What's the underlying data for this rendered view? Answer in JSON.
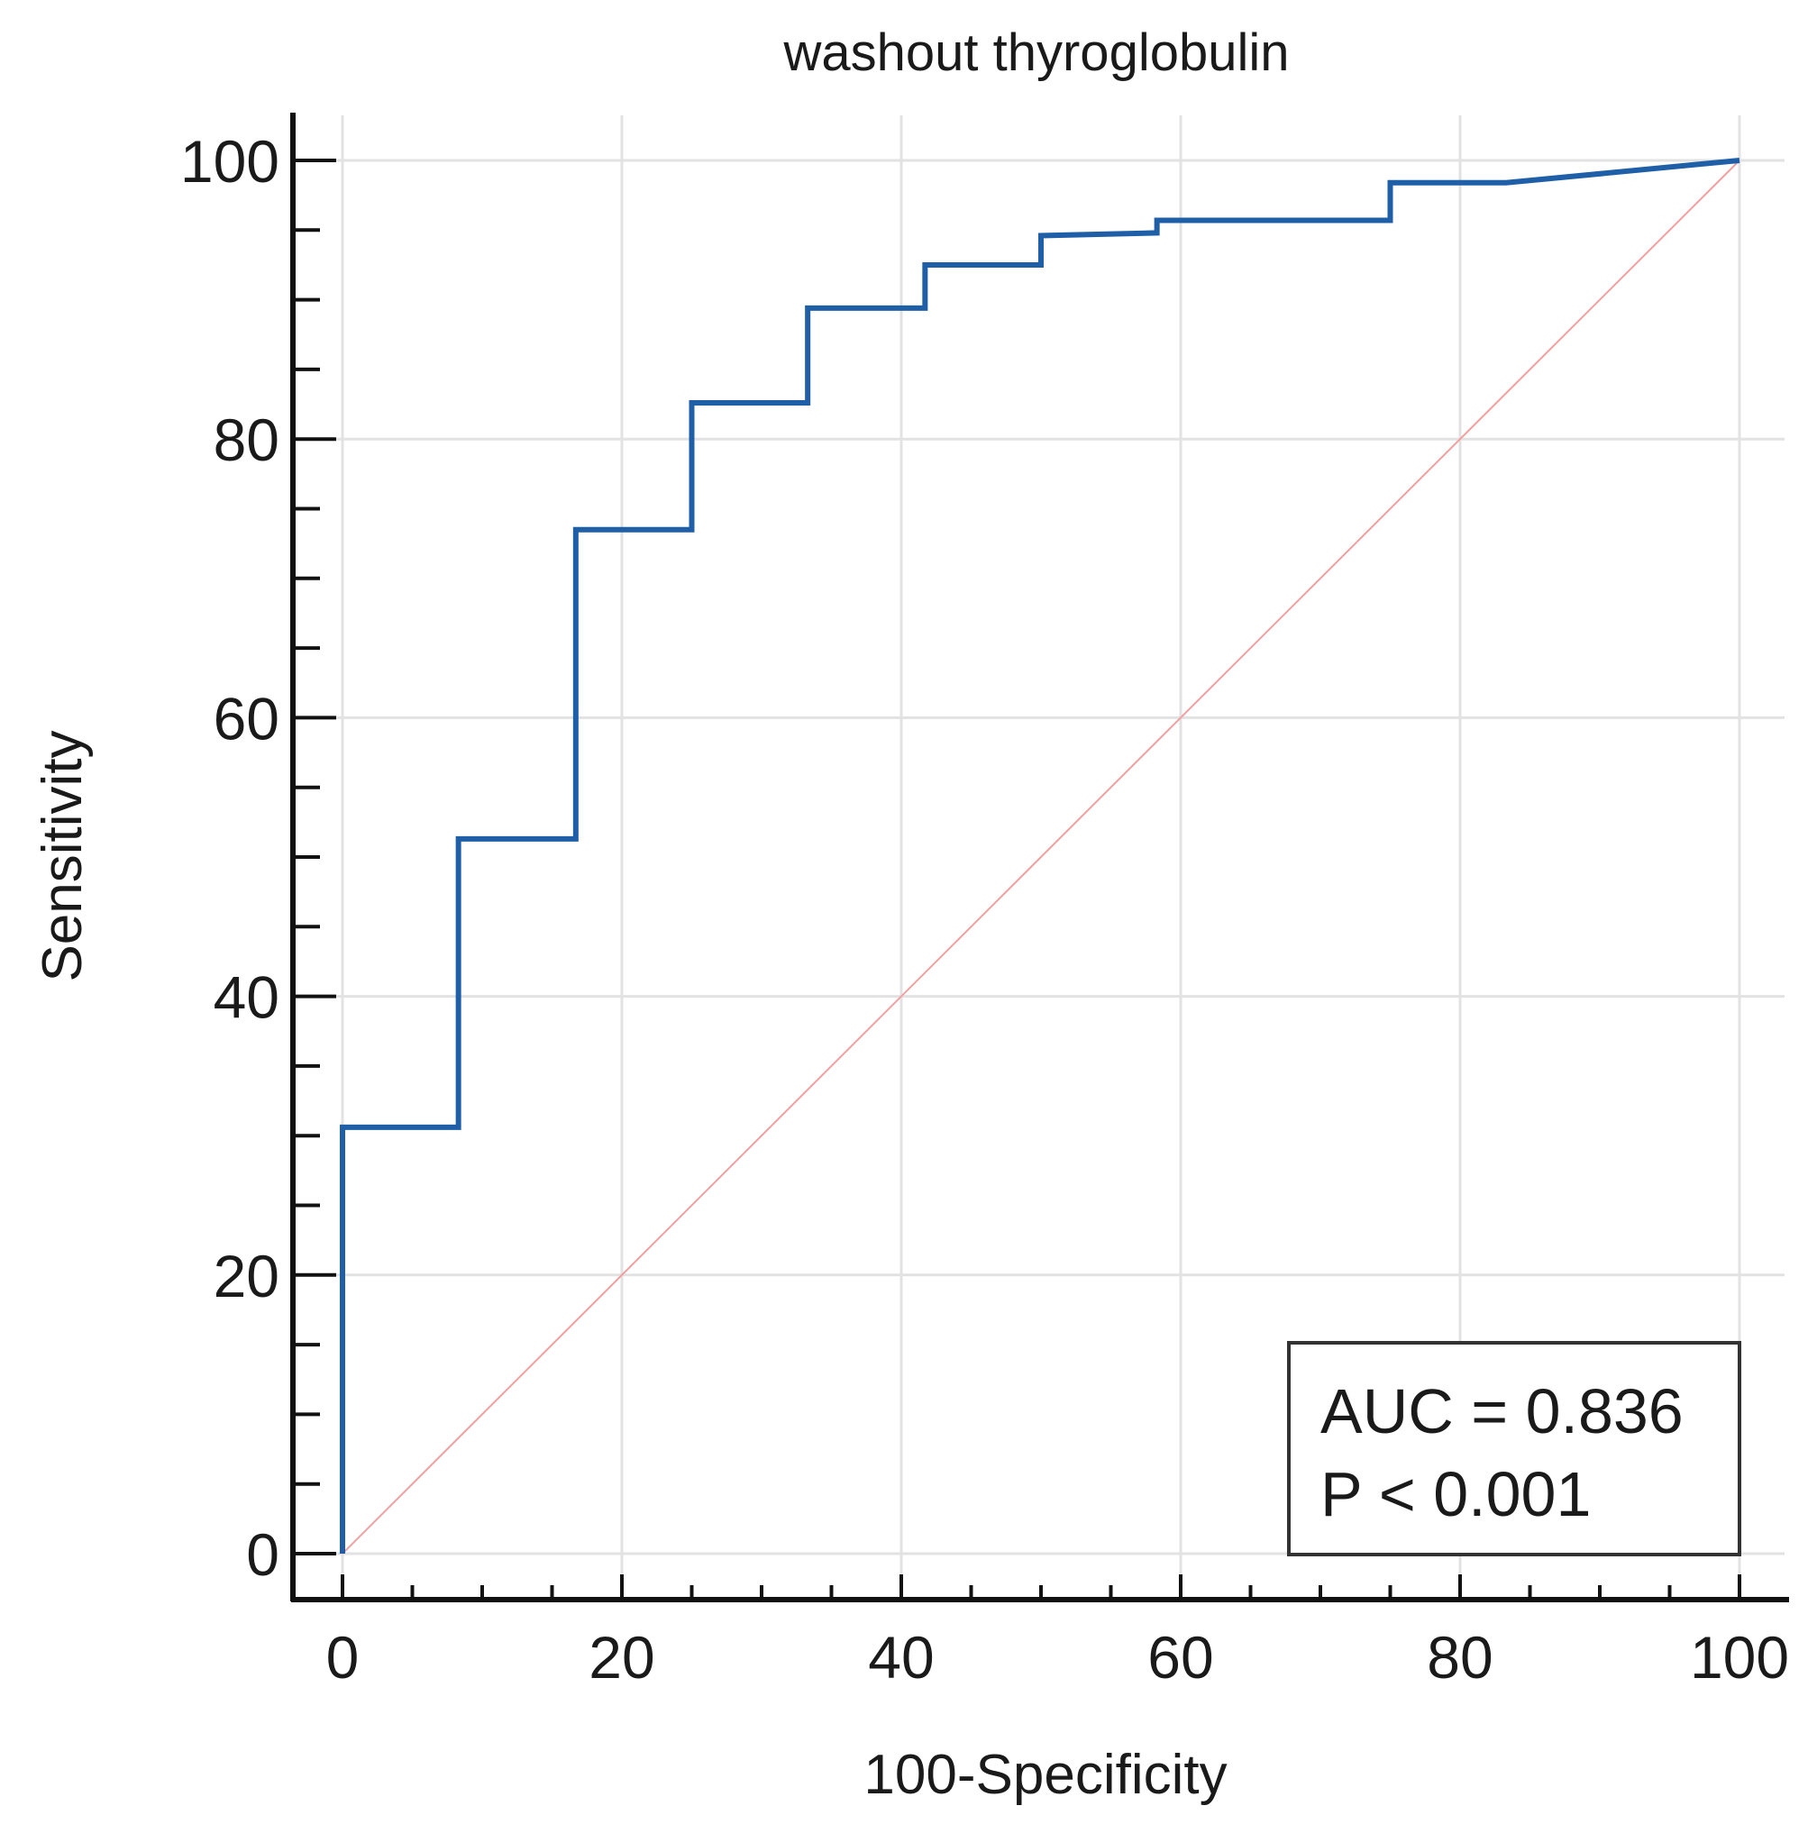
{
  "chart_data": {
    "type": "line",
    "title": "washout thyroglobulin",
    "xlabel": "100-Specificity",
    "ylabel": "Sensitivity",
    "xlim": [
      0,
      100
    ],
    "ylim": [
      0,
      100
    ],
    "grid": true,
    "xticks": [
      "0",
      "20",
      "40",
      "60",
      "80",
      "100"
    ],
    "yticks": [
      "0",
      "20",
      "40",
      "60",
      "80",
      "100"
    ],
    "series": [
      {
        "name": "ROC curve",
        "color": "#1f5fa8",
        "x": [
          0,
          0,
          8.3,
          8.3,
          16.7,
          16.7,
          25,
          25,
          33.3,
          33.3,
          41.7,
          41.7,
          50,
          50,
          58.3,
          58.3,
          75,
          75,
          83.3,
          100
        ],
        "y": [
          0,
          30.6,
          30.6,
          51.3,
          51.3,
          73.5,
          73.5,
          82.6,
          82.6,
          89.4,
          89.4,
          92.5,
          92.5,
          94.6,
          94.8,
          95.7,
          95.7,
          98.4,
          98.4,
          100
        ]
      },
      {
        "name": "Reference line",
        "color": "#f0a0a0",
        "x": [
          0,
          100
        ],
        "y": [
          0,
          100
        ]
      }
    ],
    "annotations": {
      "auc": "AUC = 0.836",
      "p": "P < 0.001"
    }
  }
}
